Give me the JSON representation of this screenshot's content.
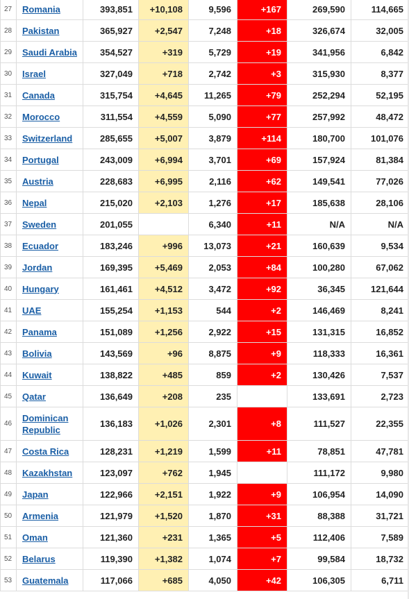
{
  "colors": {
    "new_cases_bg": "#fff0b3",
    "new_deaths_bg": "#ff0000",
    "link": "#1b5fa6"
  },
  "rows": [
    {
      "rank": "27",
      "country": "Romania",
      "total_cases": "393,851",
      "new_cases": "+10,108",
      "total_deaths": "9,596",
      "new_deaths": "+167",
      "total_recovered": "269,590",
      "active_cases": "114,665"
    },
    {
      "rank": "28",
      "country": "Pakistan",
      "total_cases": "365,927",
      "new_cases": "+2,547",
      "total_deaths": "7,248",
      "new_deaths": "+18",
      "total_recovered": "326,674",
      "active_cases": "32,005"
    },
    {
      "rank": "29",
      "country": "Saudi Arabia",
      "total_cases": "354,527",
      "new_cases": "+319",
      "total_deaths": "5,729",
      "new_deaths": "+19",
      "total_recovered": "341,956",
      "active_cases": "6,842"
    },
    {
      "rank": "30",
      "country": "Israel",
      "total_cases": "327,049",
      "new_cases": "+718",
      "total_deaths": "2,742",
      "new_deaths": "+3",
      "total_recovered": "315,930",
      "active_cases": "8,377"
    },
    {
      "rank": "31",
      "country": "Canada",
      "total_cases": "315,754",
      "new_cases": "+4,645",
      "total_deaths": "11,265",
      "new_deaths": "+79",
      "total_recovered": "252,294",
      "active_cases": "52,195"
    },
    {
      "rank": "32",
      "country": "Morocco",
      "total_cases": "311,554",
      "new_cases": "+4,559",
      "total_deaths": "5,090",
      "new_deaths": "+77",
      "total_recovered": "257,992",
      "active_cases": "48,472"
    },
    {
      "rank": "33",
      "country": "Switzerland",
      "total_cases": "285,655",
      "new_cases": "+5,007",
      "total_deaths": "3,879",
      "new_deaths": "+114",
      "total_recovered": "180,700",
      "active_cases": "101,076"
    },
    {
      "rank": "34",
      "country": "Portugal",
      "total_cases": "243,009",
      "new_cases": "+6,994",
      "total_deaths": "3,701",
      "new_deaths": "+69",
      "total_recovered": "157,924",
      "active_cases": "81,384"
    },
    {
      "rank": "35",
      "country": "Austria",
      "total_cases": "228,683",
      "new_cases": "+6,995",
      "total_deaths": "2,116",
      "new_deaths": "+62",
      "total_recovered": "149,541",
      "active_cases": "77,026"
    },
    {
      "rank": "36",
      "country": "Nepal",
      "total_cases": "215,020",
      "new_cases": "+2,103",
      "total_deaths": "1,276",
      "new_deaths": "+17",
      "total_recovered": "185,638",
      "active_cases": "28,106"
    },
    {
      "rank": "37",
      "country": "Sweden",
      "total_cases": "201,055",
      "new_cases": "",
      "total_deaths": "6,340",
      "new_deaths": "+11",
      "total_recovered": "N/A",
      "active_cases": "N/A"
    },
    {
      "rank": "38",
      "country": "Ecuador",
      "total_cases": "183,246",
      "new_cases": "+996",
      "total_deaths": "13,073",
      "new_deaths": "+21",
      "total_recovered": "160,639",
      "active_cases": "9,534"
    },
    {
      "rank": "39",
      "country": "Jordan",
      "total_cases": "169,395",
      "new_cases": "+5,469",
      "total_deaths": "2,053",
      "new_deaths": "+84",
      "total_recovered": "100,280",
      "active_cases": "67,062"
    },
    {
      "rank": "40",
      "country": "Hungary",
      "total_cases": "161,461",
      "new_cases": "+4,512",
      "total_deaths": "3,472",
      "new_deaths": "+92",
      "total_recovered": "36,345",
      "active_cases": "121,644"
    },
    {
      "rank": "41",
      "country": "UAE",
      "total_cases": "155,254",
      "new_cases": "+1,153",
      "total_deaths": "544",
      "new_deaths": "+2",
      "total_recovered": "146,469",
      "active_cases": "8,241"
    },
    {
      "rank": "42",
      "country": "Panama",
      "total_cases": "151,089",
      "new_cases": "+1,256",
      "total_deaths": "2,922",
      "new_deaths": "+15",
      "total_recovered": "131,315",
      "active_cases": "16,852"
    },
    {
      "rank": "43",
      "country": "Bolivia",
      "total_cases": "143,569",
      "new_cases": "+96",
      "total_deaths": "8,875",
      "new_deaths": "+9",
      "total_recovered": "118,333",
      "active_cases": "16,361"
    },
    {
      "rank": "44",
      "country": "Kuwait",
      "total_cases": "138,822",
      "new_cases": "+485",
      "total_deaths": "859",
      "new_deaths": "+2",
      "total_recovered": "130,426",
      "active_cases": "7,537"
    },
    {
      "rank": "45",
      "country": "Qatar",
      "total_cases": "136,649",
      "new_cases": "+208",
      "total_deaths": "235",
      "new_deaths": "",
      "total_recovered": "133,691",
      "active_cases": "2,723"
    },
    {
      "rank": "46",
      "country": "Dominican Republic",
      "total_cases": "136,183",
      "new_cases": "+1,026",
      "total_deaths": "2,301",
      "new_deaths": "+8",
      "total_recovered": "111,527",
      "active_cases": "22,355"
    },
    {
      "rank": "47",
      "country": "Costa Rica",
      "total_cases": "128,231",
      "new_cases": "+1,219",
      "total_deaths": "1,599",
      "new_deaths": "+11",
      "total_recovered": "78,851",
      "active_cases": "47,781"
    },
    {
      "rank": "48",
      "country": "Kazakhstan",
      "total_cases": "123,097",
      "new_cases": "+762",
      "total_deaths": "1,945",
      "new_deaths": "",
      "total_recovered": "111,172",
      "active_cases": "9,980"
    },
    {
      "rank": "49",
      "country": "Japan",
      "total_cases": "122,966",
      "new_cases": "+2,151",
      "total_deaths": "1,922",
      "new_deaths": "+9",
      "total_recovered": "106,954",
      "active_cases": "14,090"
    },
    {
      "rank": "50",
      "country": "Armenia",
      "total_cases": "121,979",
      "new_cases": "+1,520",
      "total_deaths": "1,870",
      "new_deaths": "+31",
      "total_recovered": "88,388",
      "active_cases": "31,721"
    },
    {
      "rank": "51",
      "country": "Oman",
      "total_cases": "121,360",
      "new_cases": "+231",
      "total_deaths": "1,365",
      "new_deaths": "+5",
      "total_recovered": "112,406",
      "active_cases": "7,589"
    },
    {
      "rank": "52",
      "country": "Belarus",
      "total_cases": "119,390",
      "new_cases": "+1,382",
      "total_deaths": "1,074",
      "new_deaths": "+7",
      "total_recovered": "99,584",
      "active_cases": "18,732"
    },
    {
      "rank": "53",
      "country": "Guatemala",
      "total_cases": "117,066",
      "new_cases": "+685",
      "total_deaths": "4,050",
      "new_deaths": "+42",
      "total_recovered": "106,305",
      "active_cases": "6,711"
    }
  ]
}
